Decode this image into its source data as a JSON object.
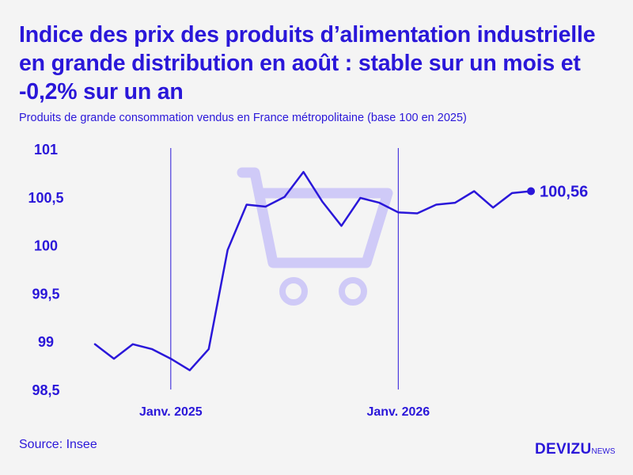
{
  "header": {
    "title": "Indice des prix des produits d’alimentation industrielle en grande distribution en août : stable sur un mois et -0,2% sur un an",
    "subtitle": "Produits de grande consommation vendus en France métropolitaine (base 100 en 2025)"
  },
  "footer": {
    "source": "Source: Insee",
    "logo_main": "DEVIZU",
    "logo_sub": "NEWS"
  },
  "colors": {
    "accent": "#2a17d9",
    "cart": "#cfcaf7",
    "background": "#f4f4f4"
  },
  "icon": "shopping-cart-icon",
  "chart_data": {
    "type": "line",
    "grid": false,
    "ylim": [
      98.5,
      101
    ],
    "yticks": [
      98.5,
      99,
      99.5,
      100,
      100.5,
      101
    ],
    "ytick_labels": [
      "98,5",
      "99",
      "99,5",
      "100",
      "100,5",
      "101"
    ],
    "xlim": [
      0,
      24
    ],
    "xticks": [
      {
        "x": 4,
        "label": "Janv. 2025"
      },
      {
        "x": 16,
        "label": "Janv. 2026"
      }
    ],
    "last_value_label": "100,56",
    "series": [
      {
        "x": [
          0,
          1,
          2,
          3,
          4,
          5,
          6,
          7,
          8,
          9,
          10,
          11,
          12,
          13,
          14,
          15,
          16,
          17,
          18,
          19,
          20,
          21,
          22,
          23
        ],
        "values": [
          98.97,
          98.82,
          98.97,
          98.92,
          98.82,
          98.7,
          98.92,
          99.95,
          100.42,
          100.4,
          100.5,
          100.76,
          100.45,
          100.2,
          100.49,
          100.44,
          100.34,
          100.33,
          100.42,
          100.44,
          100.56,
          100.39,
          100.54,
          100.56
        ]
      }
    ]
  }
}
